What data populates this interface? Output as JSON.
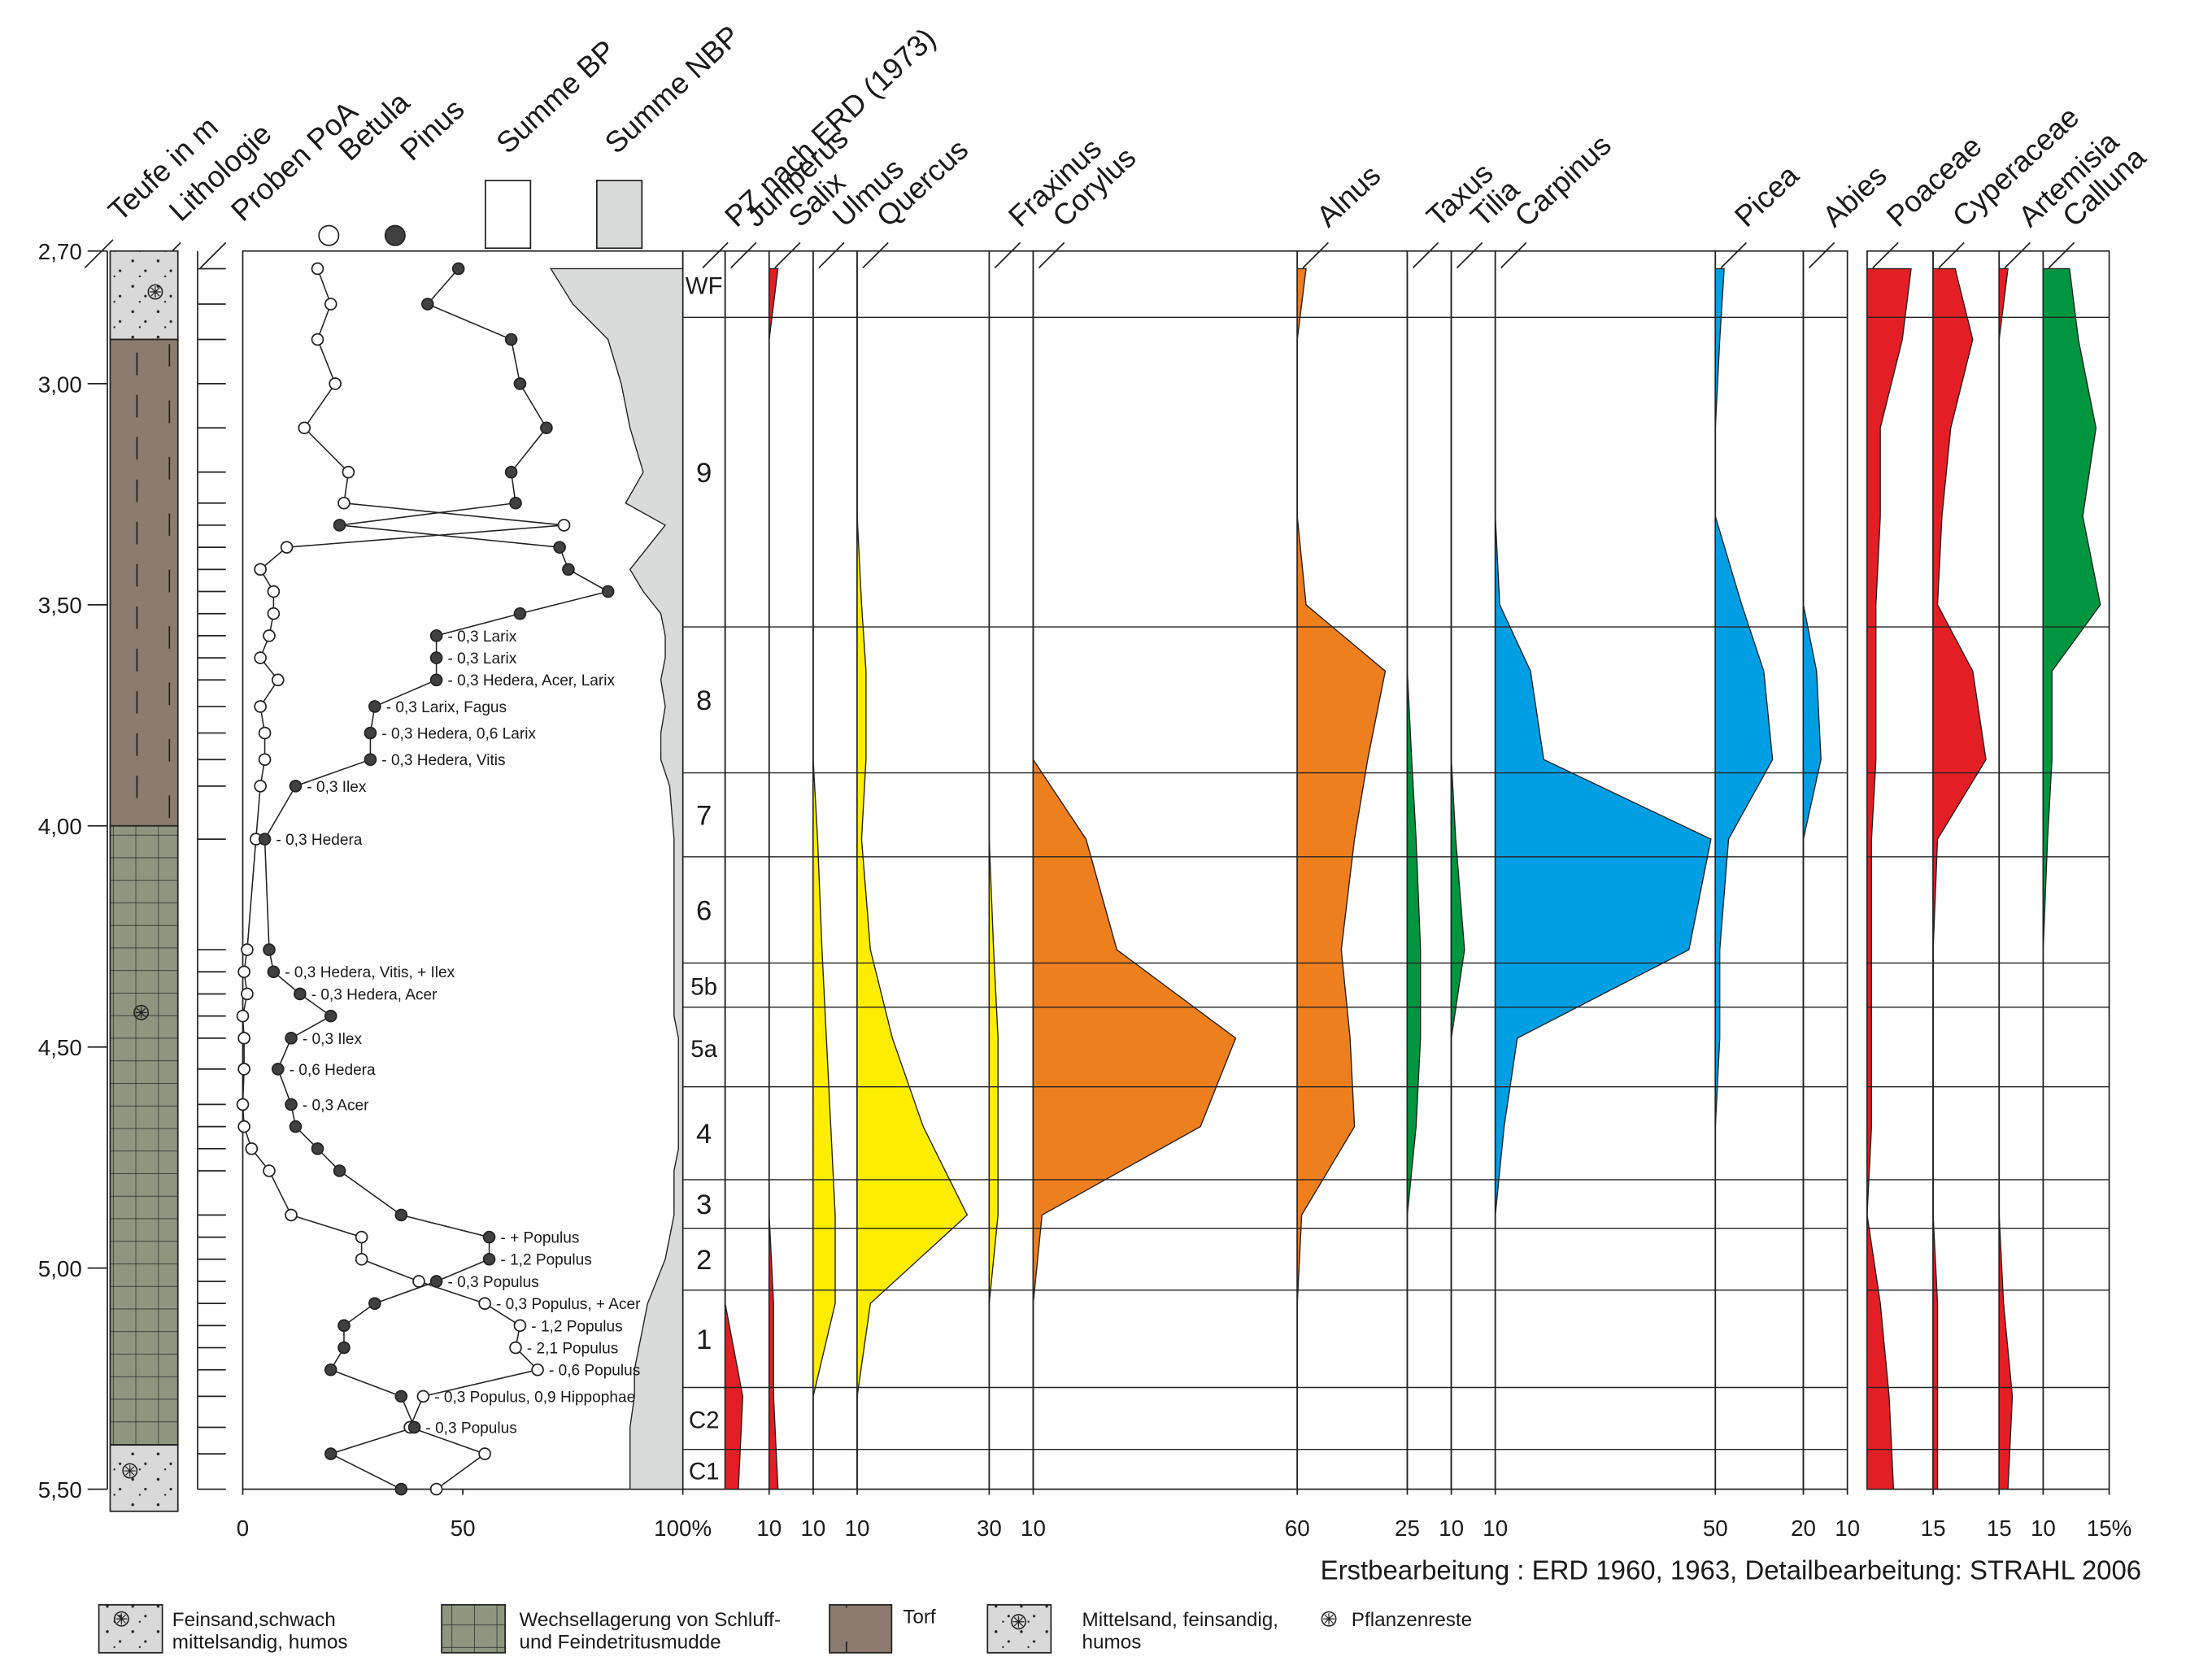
{
  "chart_data": {
    "type": "pollen",
    "depth_label": "Teufe in m",
    "lithology_label": "Lithologie",
    "samples_label": "Proben PoA",
    "zone_title": "PZ nach ERD (1973)",
    "ylim": [
      2.7,
      5.5
    ],
    "yticks": [
      {
        "value": 2.7,
        "label": "2,70"
      },
      {
        "value": 3.0,
        "label": "3,00"
      },
      {
        "value": 3.5,
        "label": "3,50"
      },
      {
        "value": 4.0,
        "label": "4,00"
      },
      {
        "value": 4.5,
        "label": "4,50"
      },
      {
        "value": 5.0,
        "label": "5,00"
      },
      {
        "value": 5.5,
        "label": "5,50"
      }
    ],
    "lithology": [
      {
        "top": 2.7,
        "bottom": 2.9,
        "pattern": "sand"
      },
      {
        "top": 2.9,
        "bottom": 4.0,
        "pattern": "peat"
      },
      {
        "top": 4.0,
        "bottom": 5.4,
        "pattern": "silt"
      },
      {
        "top": 5.4,
        "bottom": 5.55,
        "pattern": "sand"
      }
    ],
    "main": {
      "xlim": [
        0,
        100
      ],
      "xticks": [
        0,
        50,
        {
          "value": 100,
          "label": "100%"
        }
      ],
      "depths": [
        2.74,
        2.82,
        2.9,
        3.0,
        3.1,
        3.2,
        3.27,
        3.32,
        3.37,
        3.42,
        3.47,
        3.52,
        3.57,
        3.62,
        3.67,
        3.73,
        3.79,
        3.85,
        3.91,
        4.03,
        4.28,
        4.33,
        4.38,
        4.43,
        4.48,
        4.55,
        4.63,
        4.68,
        4.73,
        4.78,
        4.88,
        4.93,
        4.98,
        5.03,
        5.08,
        5.13,
        5.18,
        5.23,
        5.29,
        5.36,
        5.42,
        5.5
      ],
      "series": [
        {
          "name": "Betula",
          "color": "#ffffff",
          "values": [
            17,
            20,
            17,
            21,
            14,
            24,
            23,
            73,
            10,
            4,
            7,
            7,
            6,
            4,
            8,
            4,
            5,
            5,
            4,
            3,
            1,
            0.3,
            1,
            0,
            0.3,
            0.3,
            0,
            0.3,
            2,
            6,
            11,
            27,
            27,
            40,
            55,
            63,
            62,
            67,
            41,
            38,
            55,
            44
          ]
        },
        {
          "name": "Pinus",
          "color": "#404040",
          "values": [
            49,
            42,
            61,
            63,
            69,
            61,
            62,
            22,
            72,
            74,
            83,
            63,
            44,
            44,
            44,
            30,
            29,
            29,
            12,
            5,
            6,
            7,
            13,
            20,
            11,
            8,
            11,
            12,
            17,
            22,
            36,
            56,
            56,
            44,
            30,
            23,
            23,
            20,
            36,
            39,
            20,
            36
          ]
        },
        {
          "name": "Summe BP",
          "color": "#ffffff"
        },
        {
          "name": "Summe NBP",
          "color": "#d9dada",
          "values": [
            30,
            25,
            17,
            14,
            12,
            9,
            13,
            4,
            8,
            12,
            9,
            5,
            4,
            4,
            5,
            4,
            5,
            5,
            3,
            2,
            2,
            2,
            2,
            2,
            1,
            1,
            1,
            1,
            1,
            2,
            2,
            3,
            4,
            6,
            8,
            9,
            10,
            11,
            11,
            12,
            12,
            12
          ]
        }
      ],
      "notes": [
        null,
        null,
        null,
        null,
        null,
        null,
        null,
        null,
        null,
        null,
        null,
        null,
        "- 0,3 Larix",
        "- 0,3 Larix",
        "- 0,3 Hedera, Acer, Larix",
        "- 0,3 Larix, Fagus",
        "- 0,3 Hedera, 0,6 Larix",
        "- 0,3 Hedera, Vitis",
        "- 0,3 Ilex",
        "- 0,3 Hedera",
        null,
        "- 0,3 Hedera, Vitis, + Ilex",
        "- 0,3 Hedera, Acer",
        null,
        "- 0,3 Ilex",
        "- 0,6 Hedera",
        "- 0,3 Acer",
        null,
        null,
        null,
        null,
        "- + Populus",
        "- 1,2 Populus",
        "- 0,3 Populus",
        "- 0,3 Populus, + Acer",
        "- 1,2 Populus",
        "- 2,1 Populus",
        "- 0,6 Populus",
        "- 0,3 Populus, 0,9 Hippophae",
        "- 0,3 Populus",
        null,
        null
      ]
    },
    "zones": {
      "labels": [
        "WF",
        "9",
        "8",
        "7",
        "6",
        "5b",
        "5a",
        "4",
        "3",
        "2",
        "1",
        "C2",
        "C1"
      ],
      "bounds": [
        2.85,
        3.55,
        3.88,
        4.07,
        4.31,
        4.41,
        4.59,
        4.8,
        4.91,
        5.05,
        5.27,
        5.41
      ]
    },
    "taxa": {
      "depths": [
        2.74,
        2.9,
        3.1,
        3.3,
        3.5,
        3.65,
        3.85,
        4.03,
        4.28,
        4.48,
        4.68,
        4.88,
        5.08,
        5.29,
        5.5
      ],
      "series": [
        {
          "name": "Juniperus",
          "color": "#e31e24",
          "xtick": 10,
          "values": [
            0,
            0,
            0,
            0,
            0,
            0,
            0,
            0,
            0,
            0,
            0,
            0,
            0,
            4,
            3
          ]
        },
        {
          "name": "Salix",
          "color": "#e31e24",
          "xtick": 10,
          "values": [
            2,
            0,
            0,
            0,
            0,
            0,
            0,
            0,
            0,
            0,
            0,
            0,
            1,
            1,
            2
          ]
        },
        {
          "name": "Ulmus",
          "color": "#ffed00",
          "xtick": 10,
          "values": [
            0,
            0,
            0,
            0,
            0,
            0,
            0,
            1,
            2,
            3,
            4,
            5,
            5,
            0,
            0
          ]
        },
        {
          "name": "Quercus",
          "color": "#ffed00",
          "xtick": 30,
          "values": [
            0,
            0,
            0,
            0,
            1,
            2,
            2,
            1,
            3,
            8,
            15,
            25,
            3,
            0,
            0
          ]
        },
        {
          "name": "Fraxinus",
          "color": "#ffed00",
          "xtick": 10,
          "values": [
            0,
            0,
            0,
            0,
            0,
            0,
            0,
            0,
            1,
            2,
            2,
            2,
            0,
            0,
            0
          ]
        },
        {
          "name": "Corylus",
          "color": "#ee7f1f",
          "xtick": 60,
          "values": [
            0,
            0,
            0,
            0,
            0,
            0,
            0,
            12,
            19,
            46,
            38,
            2,
            0,
            0,
            0
          ]
        },
        {
          "name": "Alnus",
          "color": "#ee7f1f",
          "xtick": 25,
          "values": [
            2,
            0,
            0,
            0,
            2,
            20,
            16,
            13,
            10,
            12,
            13,
            1,
            0,
            0,
            0
          ]
        },
        {
          "name": "Taxus",
          "color": "#009640",
          "xtick": 10,
          "values": [
            0,
            0,
            0,
            0,
            0,
            0,
            1,
            2,
            3,
            3,
            2,
            0,
            0,
            0,
            0
          ]
        },
        {
          "name": "Tilia",
          "color": "#009640",
          "xtick": 10,
          "values": [
            0,
            0,
            0,
            0,
            0,
            0,
            0,
            1,
            3,
            0,
            0,
            0,
            0,
            0,
            0
          ]
        },
        {
          "name": "Carpinus",
          "color": "#009fe3",
          "xtick": 50,
          "values": [
            0,
            0,
            0,
            0,
            1,
            8,
            11,
            49,
            44,
            5,
            2,
            0,
            0,
            0,
            0
          ]
        },
        {
          "name": "Picea",
          "color": "#009fe3",
          "xtick": 20,
          "values": [
            2,
            1,
            0,
            0,
            6,
            11,
            13,
            3,
            1,
            1,
            0,
            0,
            0,
            0,
            0
          ]
        },
        {
          "name": "Abies",
          "color": "#009fe3",
          "xtick": 10,
          "values": [
            0,
            0,
            0,
            0,
            0,
            3,
            4,
            0,
            0,
            0,
            0,
            0,
            0,
            0,
            0
          ]
        },
        {
          "name": "Poaceae",
          "color": "#e31e24",
          "xtick": 15,
          "values": [
            10,
            8,
            3,
            3,
            2,
            2,
            2,
            1,
            1,
            1,
            1,
            0,
            3,
            5,
            6
          ]
        },
        {
          "name": "Cyperaceae",
          "color": "#e31e24",
          "xtick": 15,
          "values": [
            5,
            9,
            4,
            2,
            1,
            9,
            12,
            1,
            0,
            0,
            0,
            0,
            1,
            1,
            1
          ]
        },
        {
          "name": "Artemisia",
          "color": "#e31e24",
          "xtick": 10,
          "values": [
            2,
            0,
            0,
            0,
            0,
            0,
            0,
            0,
            0,
            0,
            0,
            0,
            1,
            3,
            2
          ]
        },
        {
          "name": "Calluna",
          "color": "#009640",
          "xtick": {
            "value": 15,
            "label": "15%"
          },
          "values": [
            6,
            8,
            12,
            9,
            13,
            2,
            2,
            1,
            0,
            0,
            0,
            0,
            0,
            0,
            0
          ]
        }
      ]
    }
  },
  "credit": "Erstbearbeitung : ERD 1960, 1963, Detailbearbeitung:  STRAHL 2006",
  "legend": [
    {
      "lines": [
        "Feinsand,schwach",
        "mittelsandig, humos"
      ]
    },
    {
      "lines": [
        "Wechsellagerung von Schluff-",
        "und Feindetritusmudde"
      ]
    },
    {
      "lines": [
        "Torf"
      ]
    },
    {
      "lines": [
        "Mittelsand, feinsandig,",
        "humos"
      ]
    },
    {
      "lines": [
        "Pflanzenreste"
      ]
    }
  ]
}
